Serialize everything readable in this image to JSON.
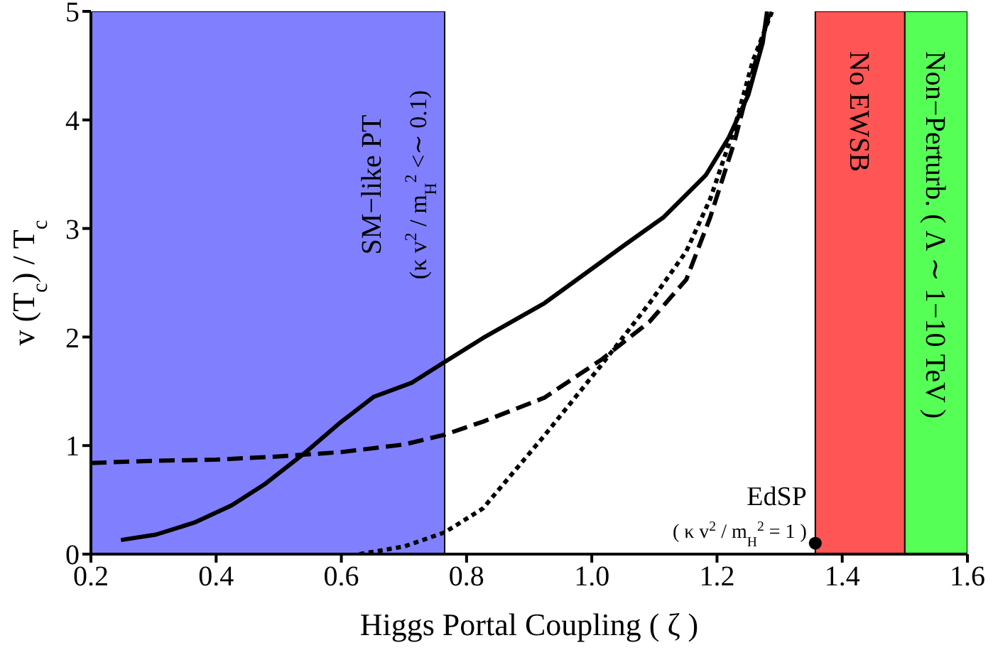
{
  "chart_data": {
    "type": "line",
    "xlabel": "Higgs Portal Coupling  ( ζ )",
    "ylabel": "v (T$_{c}$) / T$_{c}$",
    "xlim": [
      0.2,
      1.6
    ],
    "xticks": [
      {
        "value": 0.2,
        "label": "0.2"
      },
      {
        "value": 0.4,
        "label": "0.4"
      },
      {
        "value": 0.6,
        "label": "0.6"
      },
      {
        "value": 0.8,
        "label": "0.8"
      },
      {
        "value": 1.0,
        "label": "1.0"
      },
      {
        "value": 1.2,
        "label": "1.2"
      },
      {
        "value": 1.4,
        "label": "1.4"
      },
      {
        "value": 1.6,
        "label": "1.6"
      }
    ],
    "ylim": [
      0,
      5
    ],
    "yticks": [
      0,
      1,
      2,
      3,
      4,
      5
    ],
    "bands": [
      {
        "axis": "x",
        "from": 0.2,
        "to": 0.765,
        "label": "SM−like PT\n(κ v$^{2}$ / m$_{H}$$^{2}$ <∼ 0.1)",
        "color": "#8080ff"
      },
      {
        "axis": "x",
        "from": 1.357,
        "to": 1.5,
        "label": "No  EWSB",
        "color": "#ff5555"
      },
      {
        "axis": "x",
        "from": 1.5,
        "to": 1.6,
        "label": "Non−Perturb. ( Λ ∼ 1−10 TeV )",
        "color": "#55ff55"
      }
    ],
    "series": [
      {
        "line_style": "solid",
        "color": "#000000",
        "x": [
          0.248,
          0.304,
          0.365,
          0.425,
          0.479,
          0.539,
          0.6,
          0.652,
          0.713,
          0.765,
          0.826,
          0.924,
          1.053,
          1.114,
          1.182,
          1.219,
          1.25,
          1.273,
          1.28
        ],
        "values": [
          0.13,
          0.18,
          0.29,
          0.45,
          0.65,
          0.92,
          1.22,
          1.45,
          1.58,
          1.77,
          1.99,
          2.31,
          2.85,
          3.1,
          3.49,
          3.84,
          4.23,
          4.71,
          5.0
        ]
      },
      {
        "line_style": "dashed",
        "color": "#000000",
        "x": [
          0.2,
          0.3,
          0.4,
          0.5,
          0.6,
          0.7,
          0.765,
          0.826,
          0.924,
          1.015,
          1.092,
          1.151,
          1.189,
          1.228,
          1.257,
          1.285
        ],
        "values": [
          0.84,
          0.86,
          0.87,
          0.9,
          0.94,
          1.01,
          1.1,
          1.22,
          1.44,
          1.79,
          2.14,
          2.53,
          3.1,
          3.8,
          4.45,
          5.0
        ]
      },
      {
        "line_style": "dotted",
        "color": "#000000",
        "x": [
          0.629,
          0.7,
          0.765,
          0.826,
          0.924,
          1.015,
          1.092,
          1.151,
          1.189,
          1.228,
          1.257,
          1.288
        ],
        "values": [
          0,
          0.07,
          0.2,
          0.42,
          1.09,
          1.74,
          2.31,
          2.79,
          3.27,
          3.93,
          4.54,
          5.0
        ]
      },
      {
        "type": "scatter",
        "marker": "circle",
        "color": "#000000",
        "x": [
          1.357
        ],
        "values": [
          0.1
        ]
      }
    ],
    "annotations": [
      {
        "text": "EdSP",
        "x": 1.357,
        "y": 0.1
      },
      {
        "text": "( κ v$^{2}$ / m$_{H}$$^{2}$ = 1 )",
        "x": 1.357,
        "y": 0.1
      }
    ]
  }
}
